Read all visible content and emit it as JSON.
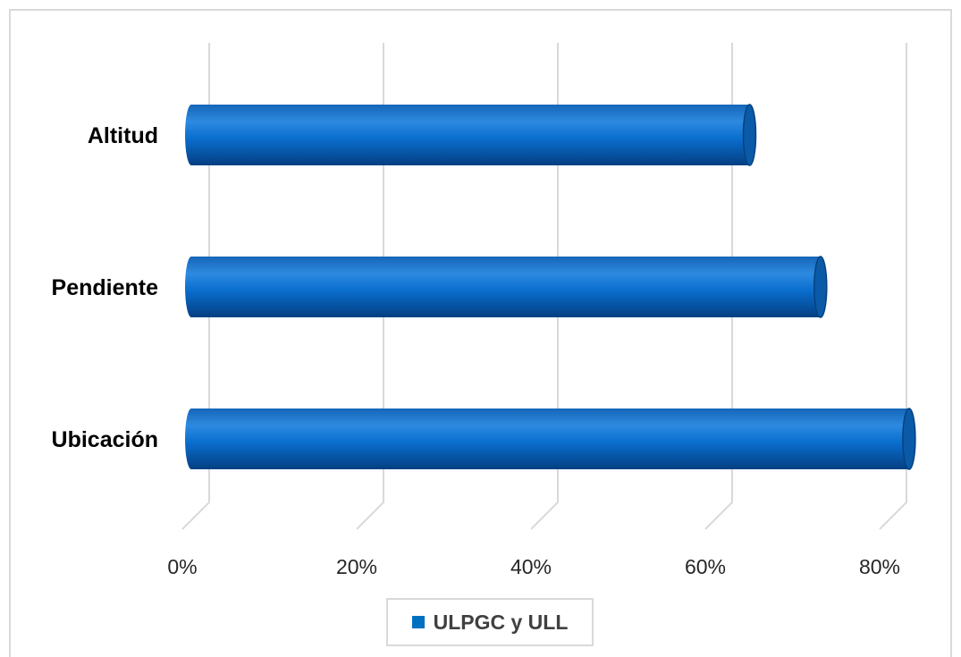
{
  "chart_data": {
    "type": "bar",
    "orientation": "horizontal",
    "categories": [
      "Altitud",
      "Pendiente",
      "Ubicación"
    ],
    "series": [
      {
        "name": "ULPGC y ULL",
        "values": [
          63,
          71,
          81
        ]
      }
    ],
    "x_ticks": [
      "0%",
      "20%",
      "40%",
      "60%",
      "80%"
    ],
    "xlim": [
      0,
      80
    ],
    "grid": true,
    "legend_position": "bottom",
    "color": "#0070C0"
  }
}
